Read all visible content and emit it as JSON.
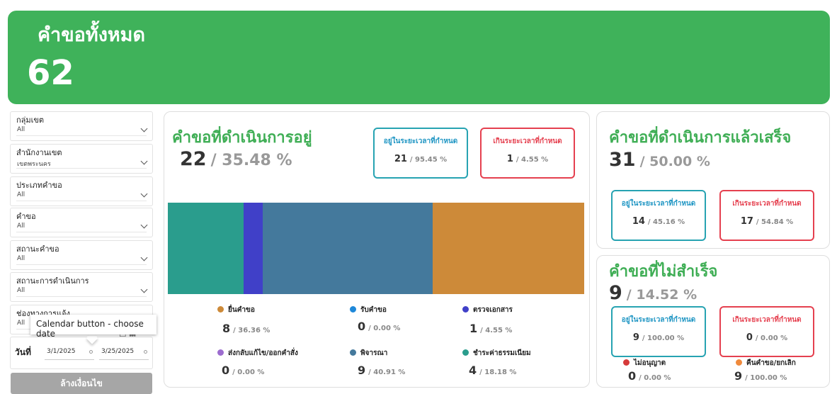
{
  "banner": {
    "title": "คำขอทั้งหมด",
    "total": "62"
  },
  "filters": [
    {
      "label": "กลุ่มเขต",
      "value": "All"
    },
    {
      "label": "สำนักงานเขต",
      "value": "เขตพระนคร"
    },
    {
      "label": "ประเภทคำขอ",
      "value": "All"
    },
    {
      "label": "คำขอ",
      "value": "All"
    },
    {
      "label": "สถานะคำขอ",
      "value": "All"
    },
    {
      "label": "สถานะการดำเนินการ",
      "value": "All"
    },
    {
      "label": "ช่องทางการแจ้ง",
      "value": "All"
    }
  ],
  "date": {
    "label": "วันที่",
    "start": "3/1/2025",
    "end": "3/25/2025",
    "tooltip": "Calendar button - choose date"
  },
  "reset_label": "ล้างเงื่อนไข",
  "in_progress": {
    "title": "คำขอที่ดำเนินการอยู่",
    "count": "22",
    "pct": "/ 35.48 %",
    "on_time": {
      "label": "อยู่ในระยะเวลาที่กำหนด",
      "count": "21",
      "pct": "/ 95.45 %"
    },
    "overdue": {
      "label": "เกินระยะเวลาที่กำหนด",
      "count": "1",
      "pct": "/ 4.55 %"
    }
  },
  "chart_data": {
    "type": "bar",
    "orientation": "horizontal-stacked-100",
    "series": [
      {
        "name": "ยื่นคำขอ",
        "value": 8,
        "pct": 36.36,
        "color": "#cd8a39"
      },
      {
        "name": "รับคำขอ",
        "value": 0,
        "pct": 0.0,
        "color": "#1e88d9"
      },
      {
        "name": "ตรวจเอกสาร",
        "value": 1,
        "pct": 4.55,
        "color": "#4040c8"
      },
      {
        "name": "ส่งกลับแก้ไข/ออกคำสั่ง",
        "value": 0,
        "pct": 0.0,
        "color": "#9c6ccf"
      },
      {
        "name": "พิจารณา",
        "value": 9,
        "pct": 40.91,
        "color": "#44799c"
      },
      {
        "name": "ชำระค่าธรรมเนียม",
        "value": 4,
        "pct": 18.18,
        "color": "#2a9d8d"
      }
    ],
    "stack_order": [
      "ชำระค่าธรรมเนียม",
      "ตรวจเอกสาร",
      "พิจารณา",
      "ยื่นคำขอ"
    ]
  },
  "legend_items": [
    {
      "label": "ยื่นคำขอ",
      "value": "8",
      "pct": "/ 36.36 %"
    },
    {
      "label": "รับคำขอ",
      "value": "0",
      "pct": "/ 0.00 %"
    },
    {
      "label": "ตรวจเอกสาร",
      "value": "1",
      "pct": "/ 4.55 %"
    },
    {
      "label": "ส่งกลับแก้ไข/ออกคำสั่ง",
      "value": "0",
      "pct": "/ 0.00 %"
    },
    {
      "label": "พิจารณา",
      "value": "9",
      "pct": "/ 40.91 %"
    },
    {
      "label": "ชำระค่าธรรมเนียม",
      "value": "4",
      "pct": "/ 18.18 %"
    }
  ],
  "completed": {
    "title": "คำขอที่ดำเนินการแล้วเสร็จ",
    "count": "31",
    "pct": "/ 50.00 %",
    "on_time": {
      "label": "อยู่ในระยะเวลาที่กำหนด",
      "count": "14",
      "pct": "/ 45.16 %"
    },
    "overdue": {
      "label": "เกินระยะเวลาที่กำหนด",
      "count": "17",
      "pct": "/ 54.84 %"
    }
  },
  "failed": {
    "title": "คำขอที่ไม่สำเร็จ",
    "count": "9",
    "pct": "/ 14.52 %",
    "on_time": {
      "label": "อยู่ในระยะเวลาที่กำหนด",
      "count": "9",
      "pct": "/ 100.00 %"
    },
    "overdue": {
      "label": "เกินระยะเวลาที่กำหนด",
      "count": "0",
      "pct": "/ 0.00 %"
    },
    "not_approved": {
      "label": "ไม่อนุญาต",
      "count": "0",
      "pct": "/ 0.00 %",
      "color": "#d63a3a"
    },
    "withdrawn": {
      "label": "คืนคำขอ/ยกเลิก",
      "count": "9",
      "pct": "/ 100.00 %",
      "color": "#f08a3c"
    }
  }
}
